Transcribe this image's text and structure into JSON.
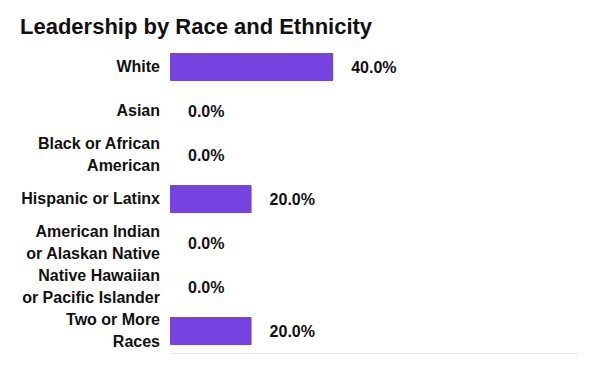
{
  "chart_data": {
    "type": "bar",
    "title": "Leadership by Race and Ethnicity",
    "orientation": "horizontal",
    "categories": [
      "White",
      "Asian",
      "Black or African\nAmerican",
      "Hispanic or Latinx",
      "American Indian\nor Alaskan Native",
      "Native Hawaiian\nor Pacific Islander",
      "Two or More\nRaces"
    ],
    "values": [
      40,
      0,
      0,
      20,
      0,
      0,
      20
    ],
    "value_labels": [
      "40.0%",
      "0.0%",
      "0.0%",
      "20.0%",
      "0.0%",
      "0.0%",
      "20.0%"
    ],
    "color": "#7443e0",
    "xlim": [
      0,
      100
    ],
    "data_labels": true,
    "tick_labels": "y",
    "grid": false
  }
}
